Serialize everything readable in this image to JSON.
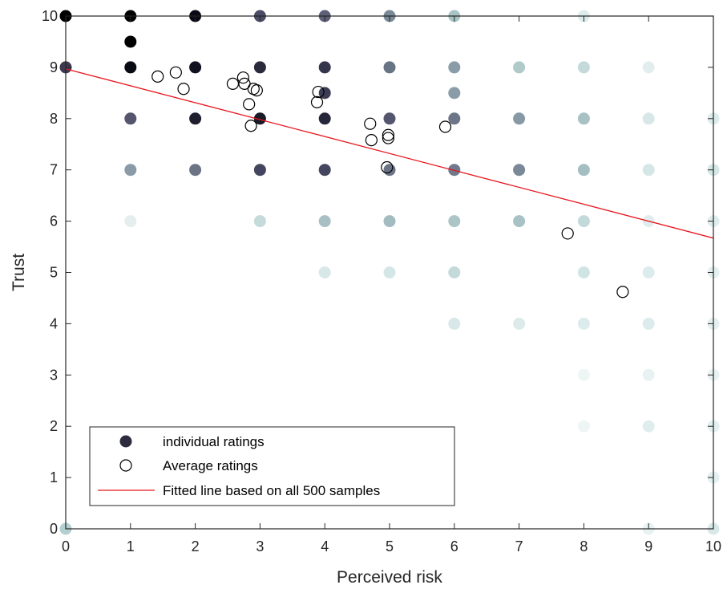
{
  "chart_data": {
    "type": "scatter",
    "xlabel": "Perceived risk",
    "ylabel": "Trust",
    "xlim": [
      0,
      10
    ],
    "ylim": [
      0,
      10
    ],
    "xticks": [
      "0",
      "1",
      "2",
      "3",
      "4",
      "5",
      "6",
      "7",
      "8",
      "9",
      "10"
    ],
    "yticks": [
      "0",
      "1",
      "2",
      "3",
      "4",
      "5",
      "6",
      "7",
      "8",
      "9",
      "10"
    ],
    "grid": false,
    "legend_position": "bottom-left",
    "series": [
      {
        "name": "individual ratings",
        "marker": "filled-circle",
        "colors_by_density": true,
        "points": [
          {
            "x": 0,
            "y": 10,
            "c": "#000000"
          },
          {
            "x": 0,
            "y": 9,
            "c": "#3b3a4e"
          },
          {
            "x": 0,
            "y": 0,
            "c": "#b4cfcf"
          },
          {
            "x": 1,
            "y": 10,
            "c": "#000000"
          },
          {
            "x": 1,
            "y": 9.5,
            "c": "#000000"
          },
          {
            "x": 1,
            "y": 9,
            "c": "#0a0a14"
          },
          {
            "x": 1,
            "y": 8,
            "c": "#55566e"
          },
          {
            "x": 1,
            "y": 7,
            "c": "#8a9aa6"
          },
          {
            "x": 1,
            "y": 6,
            "c": "#e4eeee"
          },
          {
            "x": 2,
            "y": 10,
            "c": "#0a0a14"
          },
          {
            "x": 2,
            "y": 9,
            "c": "#111120"
          },
          {
            "x": 2,
            "y": 8,
            "c": "#1e1e2e"
          },
          {
            "x": 2,
            "y": 7,
            "c": "#6c7384"
          },
          {
            "x": 3,
            "y": 10,
            "c": "#4b4c66"
          },
          {
            "x": 3,
            "y": 9,
            "c": "#2a2a3c"
          },
          {
            "x": 3,
            "y": 8,
            "c": "#1a1a28"
          },
          {
            "x": 3,
            "y": 7,
            "c": "#44455e"
          },
          {
            "x": 3,
            "y": 6,
            "c": "#c5dada"
          },
          {
            "x": 4,
            "y": 10,
            "c": "#5e6079"
          },
          {
            "x": 4,
            "y": 9,
            "c": "#34344a"
          },
          {
            "x": 4,
            "y": 8.5,
            "c": "#3c3c54"
          },
          {
            "x": 4,
            "y": 8,
            "c": "#26263a"
          },
          {
            "x": 4,
            "y": 7,
            "c": "#44455e"
          },
          {
            "x": 4,
            "y": 6,
            "c": "#a8c0c4"
          },
          {
            "x": 4,
            "y": 5,
            "c": "#d8e8e8"
          },
          {
            "x": 5,
            "y": 10,
            "c": "#7a8a98"
          },
          {
            "x": 5,
            "y": 9,
            "c": "#687486"
          },
          {
            "x": 5,
            "y": 8,
            "c": "#54566e"
          },
          {
            "x": 5,
            "y": 7,
            "c": "#6a7386"
          },
          {
            "x": 5,
            "y": 6,
            "c": "#a2bcc0"
          },
          {
            "x": 5,
            "y": 5,
            "c": "#d4e6e6"
          },
          {
            "x": 6,
            "y": 10,
            "c": "#a8c4c4"
          },
          {
            "x": 6,
            "y": 9,
            "c": "#8a9ca8"
          },
          {
            "x": 6,
            "y": 8.5,
            "c": "#8a9ca8"
          },
          {
            "x": 6,
            "y": 8,
            "c": "#6c7688"
          },
          {
            "x": 6,
            "y": 7,
            "c": "#707a8c"
          },
          {
            "x": 6,
            "y": 6,
            "c": "#acc6c8"
          },
          {
            "x": 6,
            "y": 5,
            "c": "#c4dada"
          },
          {
            "x": 6,
            "y": 4,
            "c": "#d8e8e8"
          },
          {
            "x": 7,
            "y": 9,
            "c": "#b0caca"
          },
          {
            "x": 7,
            "y": 8,
            "c": "#8899a6"
          },
          {
            "x": 7,
            "y": 7,
            "c": "#7a8898"
          },
          {
            "x": 7,
            "y": 6,
            "c": "#a8c2c4"
          },
          {
            "x": 7,
            "y": 4,
            "c": "#dceaea"
          },
          {
            "x": 8,
            "y": 10,
            "c": "#dcebeb"
          },
          {
            "x": 8,
            "y": 9,
            "c": "#c4dada"
          },
          {
            "x": 8,
            "y": 8,
            "c": "#a8c2c4"
          },
          {
            "x": 8,
            "y": 7,
            "c": "#a4bec2"
          },
          {
            "x": 8,
            "y": 6,
            "c": "#c4dada"
          },
          {
            "x": 8,
            "y": 5,
            "c": "#d0e4e4"
          },
          {
            "x": 8,
            "y": 4,
            "c": "#dcebeb"
          },
          {
            "x": 8,
            "y": 3,
            "c": "#eef5f5"
          },
          {
            "x": 8,
            "y": 2,
            "c": "#eef5f5"
          },
          {
            "x": 9,
            "y": 9,
            "c": "#e2eeee"
          },
          {
            "x": 9,
            "y": 8,
            "c": "#d8e8e8"
          },
          {
            "x": 9,
            "y": 7,
            "c": "#d4e6e6"
          },
          {
            "x": 9,
            "y": 6,
            "c": "#e0eded"
          },
          {
            "x": 9,
            "y": 5,
            "c": "#dcebeb"
          },
          {
            "x": 9,
            "y": 4,
            "c": "#dcebeb"
          },
          {
            "x": 9,
            "y": 3,
            "c": "#e8f2f2"
          },
          {
            "x": 9,
            "y": 2,
            "c": "#e0eded"
          },
          {
            "x": 9,
            "y": 0,
            "c": "#e8f2f2"
          },
          {
            "x": 10,
            "y": 8,
            "c": "#dcebeb"
          },
          {
            "x": 10,
            "y": 7,
            "c": "#d4e6e6"
          },
          {
            "x": 10,
            "y": 6,
            "c": "#e0eded"
          },
          {
            "x": 10,
            "y": 5,
            "c": "#e4efef"
          },
          {
            "x": 10,
            "y": 4,
            "c": "#e4efef"
          },
          {
            "x": 10,
            "y": 3,
            "c": "#e8f2f2"
          },
          {
            "x": 10,
            "y": 2,
            "c": "#e4efef"
          },
          {
            "x": 10,
            "y": 1,
            "c": "#e4efef"
          },
          {
            "x": 10,
            "y": 0,
            "c": "#d8e8e8"
          }
        ]
      },
      {
        "name": "Average ratings",
        "marker": "open-circle",
        "points": [
          {
            "x": 1.42,
            "y": 8.82
          },
          {
            "x": 1.7,
            "y": 8.9
          },
          {
            "x": 1.82,
            "y": 8.58
          },
          {
            "x": 2.58,
            "y": 8.68
          },
          {
            "x": 2.74,
            "y": 8.8
          },
          {
            "x": 2.76,
            "y": 8.68
          },
          {
            "x": 2.9,
            "y": 8.58
          },
          {
            "x": 2.95,
            "y": 8.55
          },
          {
            "x": 2.83,
            "y": 8.28
          },
          {
            "x": 2.86,
            "y": 7.86
          },
          {
            "x": 3.9,
            "y": 8.52
          },
          {
            "x": 3.88,
            "y": 8.32
          },
          {
            "x": 4.7,
            "y": 7.9
          },
          {
            "x": 4.72,
            "y": 7.58
          },
          {
            "x": 4.98,
            "y": 7.68
          },
          {
            "x": 4.98,
            "y": 7.62
          },
          {
            "x": 4.96,
            "y": 7.05
          },
          {
            "x": 5.86,
            "y": 7.84
          },
          {
            "x": 7.75,
            "y": 5.76
          },
          {
            "x": 8.6,
            "y": 4.62
          }
        ]
      },
      {
        "name": "Fitted line based on all 500 samples",
        "type": "line",
        "color": "#e8141c",
        "x": [
          0,
          10
        ],
        "y": [
          8.97,
          5.67
        ]
      }
    ],
    "legend": [
      "individual ratings",
      "Average ratings",
      "Fitted line based on all 500 samples"
    ]
  }
}
